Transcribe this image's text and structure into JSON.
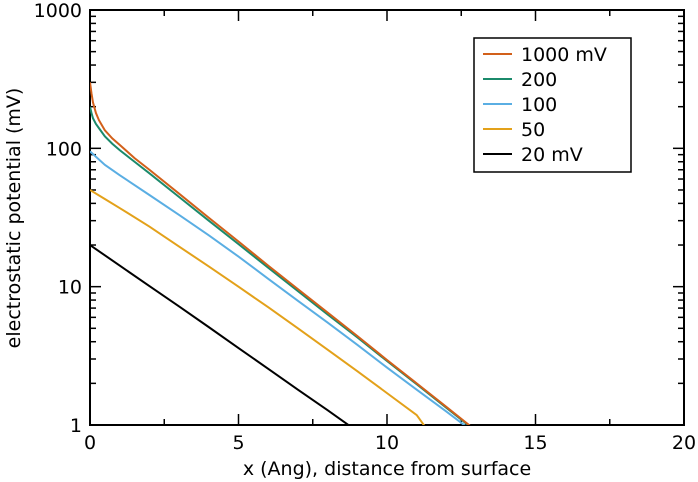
{
  "chart_data": {
    "type": "line",
    "title": "",
    "xlabel": "x (Ang), distance from surface",
    "ylabel": "electrostatic potential (mV)",
    "xlim": [
      0,
      20
    ],
    "ylim": [
      1,
      1000
    ],
    "yscale": "log",
    "grid": false,
    "legend_position": "top-right",
    "x_ticks": [
      "0",
      "5",
      "10",
      "15",
      "20"
    ],
    "y_ticks": [
      "1",
      "10",
      "100",
      "1000"
    ],
    "series": [
      {
        "name": "1000 mV",
        "color": "#d2601a",
        "x": [
          0,
          0.05,
          0.1,
          0.2,
          0.3,
          0.5,
          0.75,
          1,
          1.5,
          2,
          3,
          4,
          5,
          6,
          7,
          8,
          9,
          10,
          11,
          12,
          13,
          14.05
        ],
        "y": [
          300,
          250,
          215,
          180,
          160,
          135,
          118,
          106,
          85,
          70,
          47,
          31.5,
          21.2,
          14.2,
          9.6,
          6.5,
          4.4,
          2.95,
          2.0,
          1.35,
          0.91,
          0.6
        ]
      },
      {
        "name": "200",
        "color": "#1b8a6b",
        "x": [
          0,
          0.05,
          0.1,
          0.2,
          0.3,
          0.5,
          0.75,
          1,
          1.5,
          2,
          3,
          4,
          5,
          6,
          7,
          8,
          9,
          10,
          11,
          12,
          13,
          14
        ],
        "y": [
          200,
          180,
          165,
          150,
          140,
          122,
          108,
          97,
          80,
          66,
          44.5,
          30,
          20.3,
          13.7,
          9.3,
          6.3,
          4.3,
          2.9,
          1.97,
          1.33,
          0.9,
          0.61
        ]
      },
      {
        "name": "100",
        "color": "#5aaee3",
        "x": [
          0,
          0.5,
          1,
          2,
          3,
          4,
          5,
          6,
          7,
          8,
          9,
          10,
          11,
          12,
          13,
          13.2
        ],
        "y": [
          95,
          76,
          64,
          46,
          33,
          23.5,
          16.5,
          11.4,
          7.9,
          5.5,
          3.8,
          2.6,
          1.8,
          1.25,
          0.86,
          0.78
        ]
      },
      {
        "name": "50",
        "color": "#e3a11a",
        "x": [
          0,
          0.5,
          1,
          2,
          3,
          4,
          5,
          6,
          7,
          8,
          9,
          10,
          11,
          11.6
        ],
        "y": [
          50,
          43,
          37,
          27.2,
          19.5,
          14,
          10,
          7.1,
          5,
          3.5,
          2.45,
          1.7,
          1.18,
          0.78
        ]
      },
      {
        "name": "20 mV",
        "color": "#000000",
        "x": [
          0,
          1,
          2,
          3,
          4,
          5,
          6,
          7,
          8,
          9,
          9.1
        ],
        "y": [
          20,
          14.2,
          10.1,
          7.2,
          5.1,
          3.6,
          2.55,
          1.8,
          1.28,
          0.9,
          0.78
        ]
      }
    ]
  }
}
